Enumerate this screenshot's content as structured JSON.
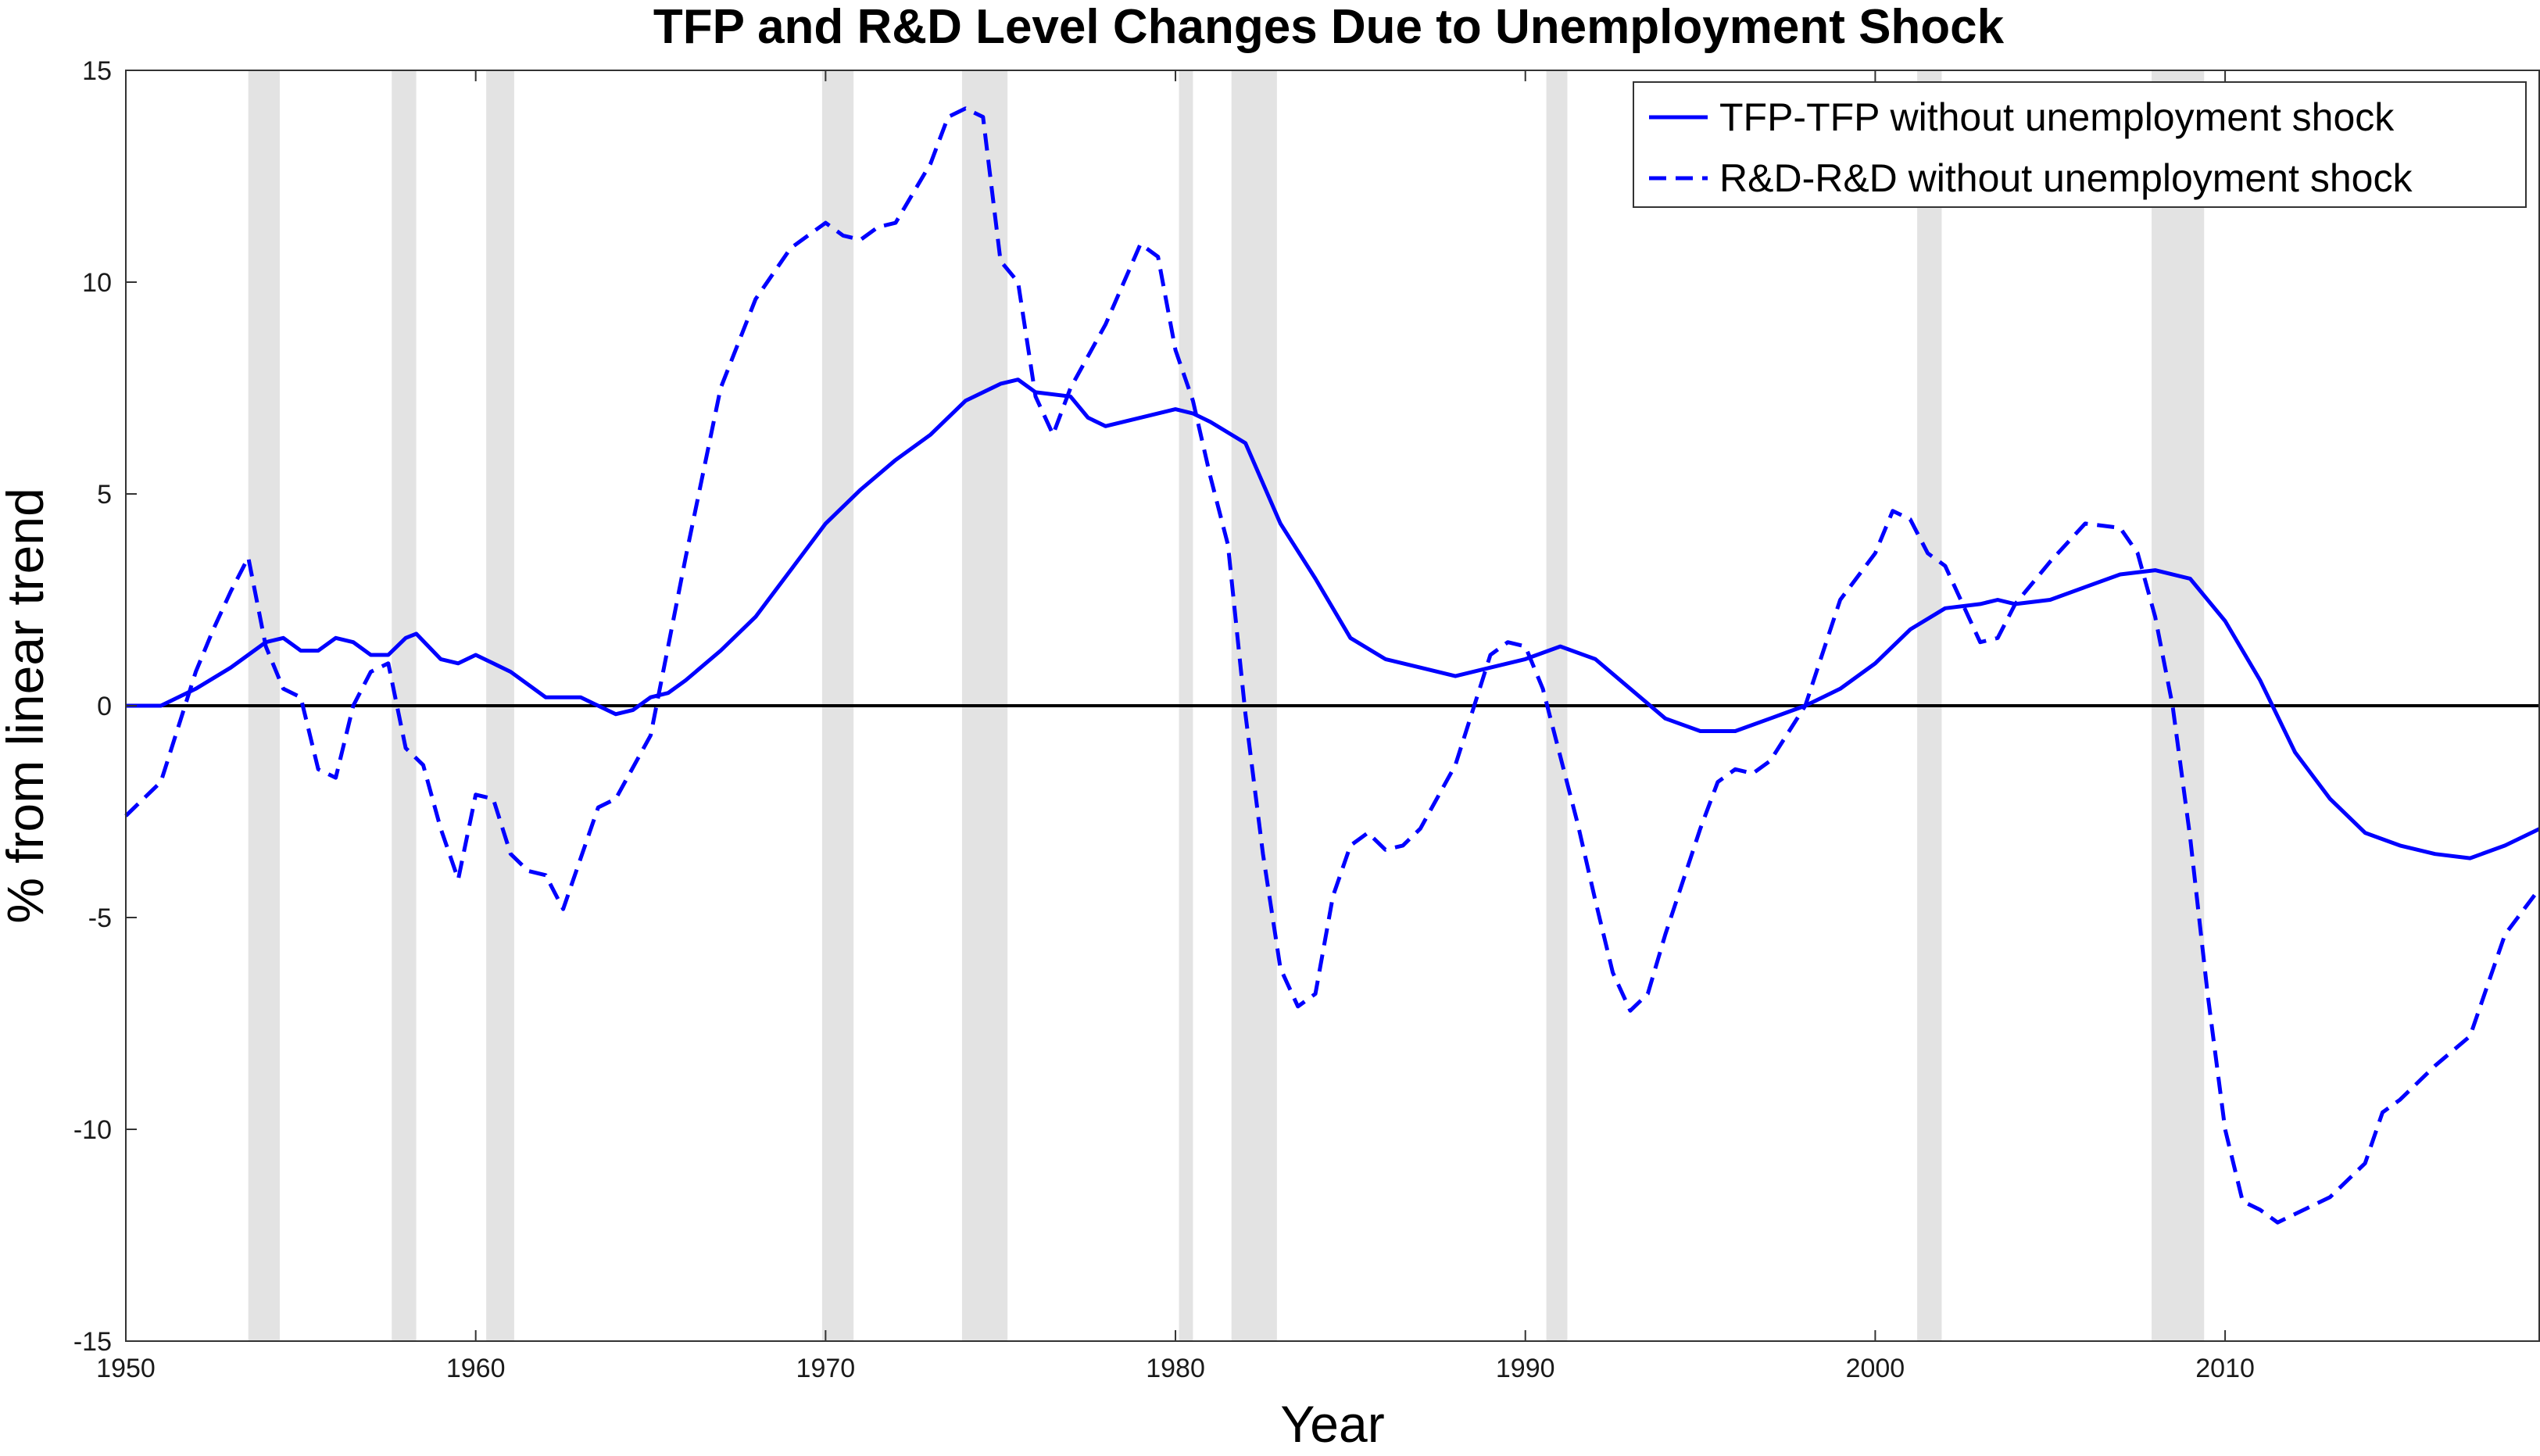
{
  "chart_data": {
    "type": "line",
    "title": "TFP and R&D Level Changes Due to Unemployment Shock",
    "xlabel": "Year",
    "ylabel": "% from linear trend",
    "xlim": [
      1950,
      2019
    ],
    "ylim": [
      -15,
      15
    ],
    "xticks": [
      1950,
      1960,
      1970,
      1980,
      1990,
      2000,
      2010
    ],
    "yticks": [
      15,
      10,
      5,
      0,
      -5,
      -10,
      -15
    ],
    "ytick_labels": [
      "15",
      "10",
      "5",
      "0",
      "-5",
      "-10",
      "-15"
    ],
    "grid": false,
    "legend_position": "top-right",
    "zero_line": true,
    "recessions": [
      [
        1953.5,
        1954.4
      ],
      [
        1957.6,
        1958.3
      ],
      [
        1960.3,
        1961.1
      ],
      [
        1969.9,
        1970.8
      ],
      [
        1973.9,
        1975.2
      ],
      [
        1980.1,
        1980.5
      ],
      [
        1981.6,
        1982.9
      ],
      [
        1990.6,
        1991.2
      ],
      [
        2001.2,
        2001.9
      ],
      [
        2007.9,
        2009.4
      ]
    ],
    "series": [
      {
        "name": "TFP-TFP without unemployment shock",
        "style": "solid",
        "color": "#0000ff",
        "points": [
          [
            1950.0,
            0.0
          ],
          [
            1951.0,
            0.0
          ],
          [
            1952.0,
            0.4
          ],
          [
            1953.0,
            0.9
          ],
          [
            1954.0,
            1.5
          ],
          [
            1954.5,
            1.6
          ],
          [
            1955.0,
            1.3
          ],
          [
            1955.5,
            1.3
          ],
          [
            1956.0,
            1.6
          ],
          [
            1956.5,
            1.5
          ],
          [
            1957.0,
            1.2
          ],
          [
            1957.5,
            1.2
          ],
          [
            1958.0,
            1.6
          ],
          [
            1958.3,
            1.7
          ],
          [
            1959.0,
            1.1
          ],
          [
            1959.5,
            1.0
          ],
          [
            1960.0,
            1.2
          ],
          [
            1960.5,
            1.0
          ],
          [
            1961.0,
            0.8
          ],
          [
            1962.0,
            0.2
          ],
          [
            1962.5,
            0.2
          ],
          [
            1963.0,
            0.2
          ],
          [
            1963.5,
            0.0
          ],
          [
            1964.0,
            -0.2
          ],
          [
            1964.5,
            -0.1
          ],
          [
            1965.0,
            0.2
          ],
          [
            1965.5,
            0.3
          ],
          [
            1966.0,
            0.6
          ],
          [
            1967.0,
            1.3
          ],
          [
            1968.0,
            2.1
          ],
          [
            1969.0,
            3.2
          ],
          [
            1970.0,
            4.3
          ],
          [
            1971.0,
            5.1
          ],
          [
            1972.0,
            5.8
          ],
          [
            1973.0,
            6.4
          ],
          [
            1974.0,
            7.2
          ],
          [
            1975.0,
            7.6
          ],
          [
            1975.5,
            7.7
          ],
          [
            1976.0,
            7.4
          ],
          [
            1977.0,
            7.3
          ],
          [
            1977.5,
            6.8
          ],
          [
            1978.0,
            6.6
          ],
          [
            1979.0,
            6.8
          ],
          [
            1980.0,
            7.0
          ],
          [
            1980.5,
            6.9
          ],
          [
            1981.0,
            6.7
          ],
          [
            1982.0,
            6.2
          ],
          [
            1983.0,
            4.3
          ],
          [
            1984.0,
            3.0
          ],
          [
            1985.0,
            1.6
          ],
          [
            1986.0,
            1.1
          ],
          [
            1987.0,
            0.9
          ],
          [
            1988.0,
            0.7
          ],
          [
            1989.0,
            0.9
          ],
          [
            1990.0,
            1.1
          ],
          [
            1991.0,
            1.4
          ],
          [
            1992.0,
            1.1
          ],
          [
            1993.0,
            0.4
          ],
          [
            1994.0,
            -0.3
          ],
          [
            1995.0,
            -0.6
          ],
          [
            1996.0,
            -0.6
          ],
          [
            1997.0,
            -0.3
          ],
          [
            1998.0,
            0.0
          ],
          [
            1999.0,
            0.4
          ],
          [
            2000.0,
            1.0
          ],
          [
            2001.0,
            1.8
          ],
          [
            2002.0,
            2.3
          ],
          [
            2003.0,
            2.4
          ],
          [
            2003.5,
            2.5
          ],
          [
            2004.0,
            2.4
          ],
          [
            2005.0,
            2.5
          ],
          [
            2006.0,
            2.8
          ],
          [
            2007.0,
            3.1
          ],
          [
            2008.0,
            3.2
          ],
          [
            2009.0,
            3.0
          ],
          [
            2010.0,
            2.0
          ],
          [
            2011.0,
            0.6
          ],
          [
            2012.0,
            -1.1
          ],
          [
            2013.0,
            -2.2
          ],
          [
            2014.0,
            -3.0
          ],
          [
            2015.0,
            -3.3
          ],
          [
            2016.0,
            -3.5
          ],
          [
            2017.0,
            -3.6
          ],
          [
            2018.0,
            -3.3
          ],
          [
            2019.0,
            -2.9
          ]
        ]
      },
      {
        "name": "R&D-R&D without unemployment shock",
        "style": "dashed",
        "color": "#0000ff",
        "points": [
          [
            1950.0,
            -2.6
          ],
          [
            1950.5,
            -2.2
          ],
          [
            1951.0,
            -1.8
          ],
          [
            1952.0,
            0.8
          ],
          [
            1952.5,
            1.8
          ],
          [
            1953.0,
            2.7
          ],
          [
            1953.5,
            3.5
          ],
          [
            1954.0,
            1.4
          ],
          [
            1954.5,
            0.4
          ],
          [
            1955.0,
            0.2
          ],
          [
            1955.5,
            -1.5
          ],
          [
            1956.0,
            -1.7
          ],
          [
            1956.5,
            0.0
          ],
          [
            1957.0,
            0.8
          ],
          [
            1957.5,
            1.0
          ],
          [
            1958.0,
            -1.0
          ],
          [
            1958.5,
            -1.4
          ],
          [
            1959.0,
            -2.9
          ],
          [
            1959.5,
            -4.1
          ],
          [
            1960.0,
            -2.1
          ],
          [
            1960.5,
            -2.2
          ],
          [
            1961.0,
            -3.5
          ],
          [
            1961.5,
            -3.9
          ],
          [
            1962.0,
            -4.0
          ],
          [
            1962.5,
            -4.8
          ],
          [
            1963.0,
            -3.6
          ],
          [
            1963.5,
            -2.4
          ],
          [
            1964.0,
            -2.2
          ],
          [
            1965.0,
            -0.7
          ],
          [
            1966.0,
            3.5
          ],
          [
            1967.0,
            7.5
          ],
          [
            1968.0,
            9.6
          ],
          [
            1969.0,
            10.8
          ],
          [
            1970.0,
            11.4
          ],
          [
            1970.5,
            11.1
          ],
          [
            1971.0,
            11.0
          ],
          [
            1971.5,
            11.3
          ],
          [
            1972.0,
            11.4
          ],
          [
            1973.0,
            12.8
          ],
          [
            1973.5,
            13.9
          ],
          [
            1974.0,
            14.1
          ],
          [
            1974.5,
            13.9
          ],
          [
            1975.0,
            10.5
          ],
          [
            1975.5,
            10.0
          ],
          [
            1976.0,
            7.3
          ],
          [
            1976.5,
            6.4
          ],
          [
            1977.0,
            7.5
          ],
          [
            1978.0,
            9.0
          ],
          [
            1979.0,
            10.9
          ],
          [
            1979.5,
            10.6
          ],
          [
            1980.0,
            8.4
          ],
          [
            1980.5,
            7.2
          ],
          [
            1981.0,
            5.4
          ],
          [
            1981.5,
            3.8
          ],
          [
            1982.0,
            -0.2
          ],
          [
            1982.5,
            -3.5
          ],
          [
            1983.0,
            -6.2
          ],
          [
            1983.5,
            -7.1
          ],
          [
            1984.0,
            -6.8
          ],
          [
            1984.5,
            -4.5
          ],
          [
            1985.0,
            -3.3
          ],
          [
            1985.5,
            -3.0
          ],
          [
            1986.0,
            -3.4
          ],
          [
            1986.5,
            -3.3
          ],
          [
            1987.0,
            -2.9
          ],
          [
            1988.0,
            -1.4
          ],
          [
            1989.0,
            1.2
          ],
          [
            1989.5,
            1.5
          ],
          [
            1990.0,
            1.4
          ],
          [
            1990.5,
            0.4
          ],
          [
            1991.0,
            -1.2
          ],
          [
            1991.5,
            -2.8
          ],
          [
            1992.0,
            -4.6
          ],
          [
            1992.5,
            -6.3
          ],
          [
            1993.0,
            -7.2
          ],
          [
            1993.5,
            -6.8
          ],
          [
            1994.0,
            -5.4
          ],
          [
            1995.0,
            -2.9
          ],
          [
            1995.5,
            -1.8
          ],
          [
            1996.0,
            -1.5
          ],
          [
            1996.5,
            -1.6
          ],
          [
            1997.0,
            -1.3
          ],
          [
            1998.0,
            0.0
          ],
          [
            1999.0,
            2.5
          ],
          [
            2000.0,
            3.6
          ],
          [
            2000.5,
            4.6
          ],
          [
            2001.0,
            4.4
          ],
          [
            2001.5,
            3.6
          ],
          [
            2002.0,
            3.3
          ],
          [
            2003.0,
            1.5
          ],
          [
            2003.5,
            1.6
          ],
          [
            2004.0,
            2.4
          ],
          [
            2005.0,
            3.4
          ],
          [
            2006.0,
            4.3
          ],
          [
            2007.0,
            4.2
          ],
          [
            2007.5,
            3.6
          ],
          [
            2008.0,
            2.1
          ],
          [
            2008.5,
            0.0
          ],
          [
            2009.0,
            -3.1
          ],
          [
            2009.5,
            -6.8
          ],
          [
            2010.0,
            -10.0
          ],
          [
            2010.5,
            -11.7
          ],
          [
            2011.0,
            -11.9
          ],
          [
            2011.5,
            -12.2
          ],
          [
            2012.0,
            -12.0
          ],
          [
            2013.0,
            -11.6
          ],
          [
            2014.0,
            -10.8
          ],
          [
            2014.5,
            -9.6
          ],
          [
            2015.0,
            -9.3
          ],
          [
            2016.0,
            -8.5
          ],
          [
            2017.0,
            -7.8
          ],
          [
            2018.0,
            -5.4
          ],
          [
            2019.0,
            -4.3
          ]
        ]
      }
    ]
  }
}
